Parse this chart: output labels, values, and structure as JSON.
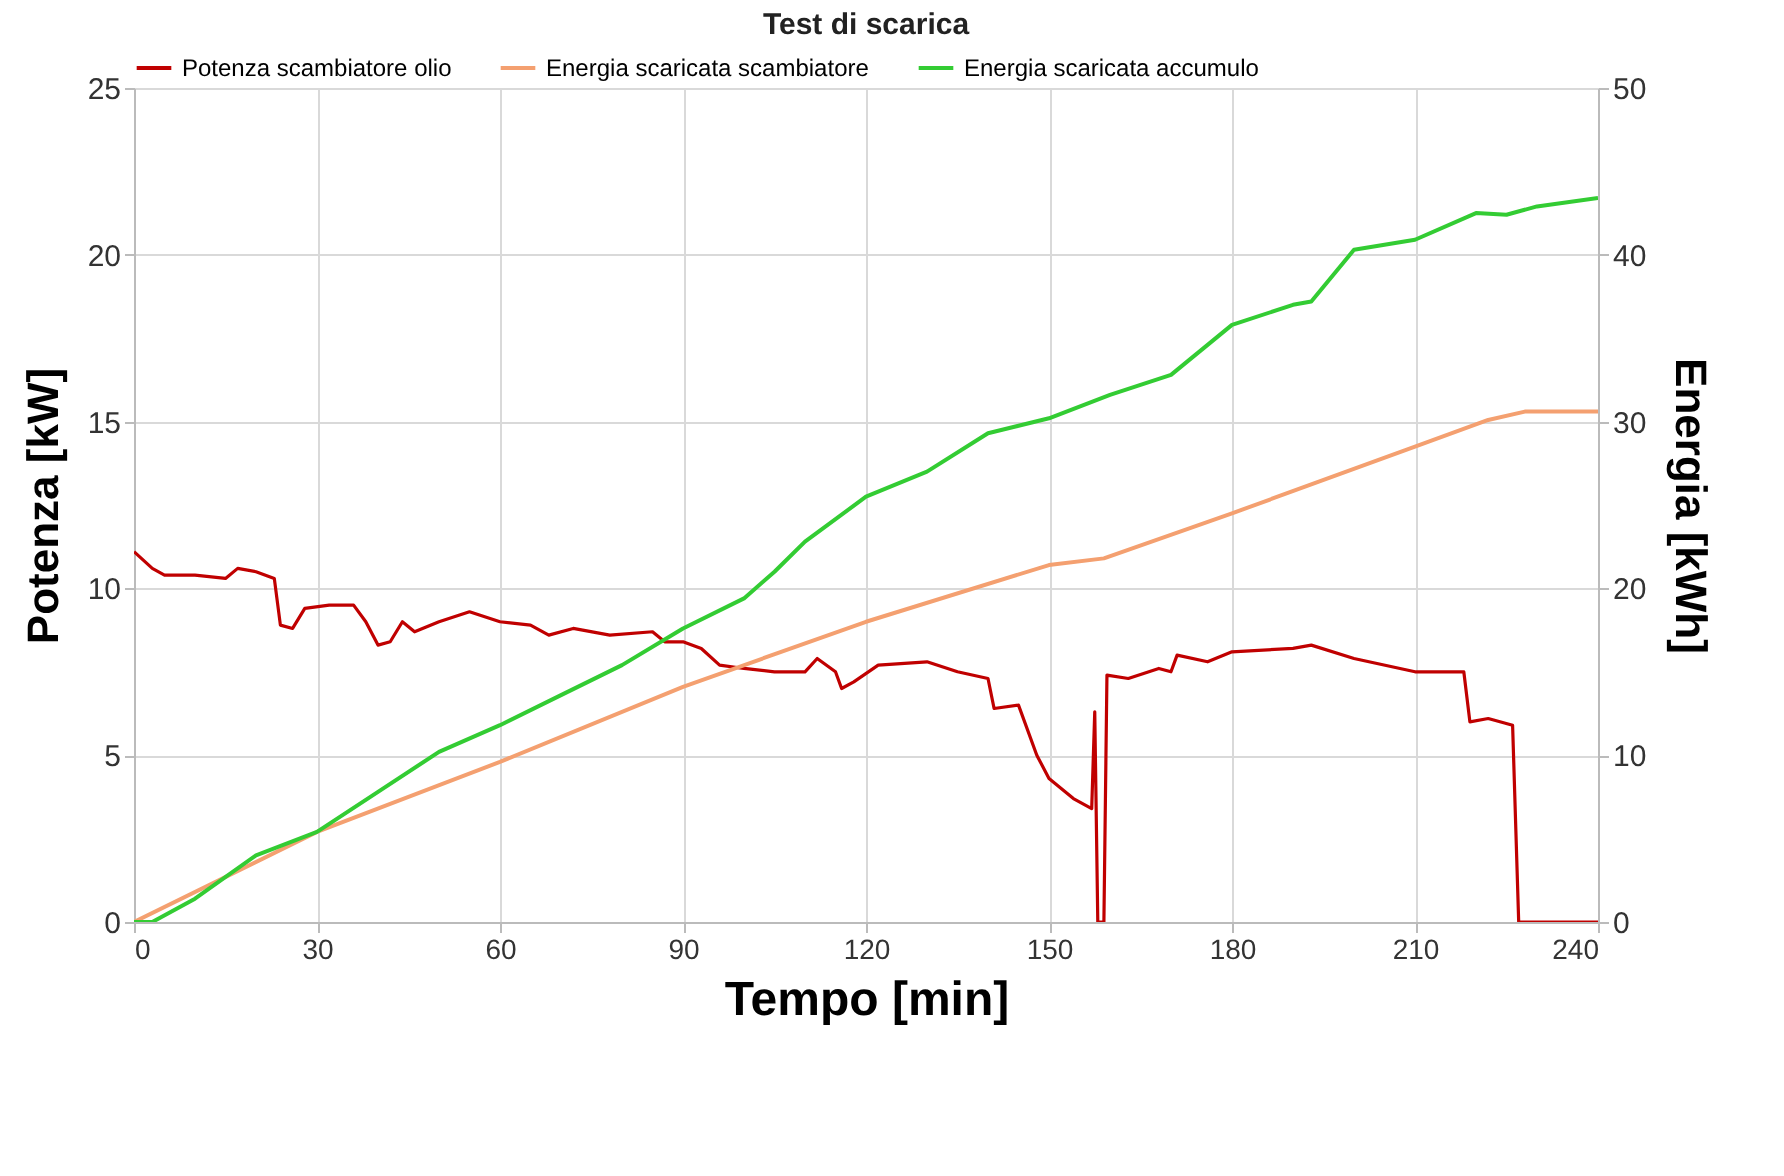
{
  "chart_data": {
    "type": "line",
    "title": "Test di scarica",
    "xlabel": "Tempo [min]",
    "ylabel": "Potenza [kW]",
    "y2label": "Energia [kWh]",
    "xlim": [
      0,
      240
    ],
    "xticks": [
      0,
      30,
      60,
      90,
      120,
      150,
      180,
      210,
      240
    ],
    "ylim": [
      0,
      25
    ],
    "yticks": [
      0,
      5,
      10,
      15,
      20,
      25
    ],
    "y2lim": [
      0,
      50
    ],
    "y2ticks": [
      0,
      10,
      20,
      30,
      40,
      50
    ],
    "grid": true,
    "legend": "top",
    "marker": "none",
    "line_style": "solid",
    "series": [
      {
        "name": "Potenza scambiatore olio",
        "color": "#c00000",
        "axis": "y",
        "x": [
          0,
          3,
          5,
          10,
          15,
          17,
          20,
          23,
          24,
          26,
          28,
          32,
          36,
          38,
          40,
          42,
          44,
          46,
          50,
          55,
          60,
          65,
          68,
          72,
          78,
          85,
          87,
          90,
          93,
          96,
          100,
          105,
          110,
          112,
          115,
          116,
          118,
          122,
          130,
          135,
          140,
          141,
          145,
          148,
          150,
          154,
          157,
          157.5,
          158,
          159,
          159.5,
          163,
          168,
          170,
          171,
          176,
          180,
          190,
          193,
          200,
          210,
          218,
          219,
          222,
          226,
          227,
          240
        ],
        "values": [
          11.1,
          10.6,
          10.4,
          10.4,
          10.3,
          10.6,
          10.5,
          10.3,
          8.9,
          8.8,
          9.4,
          9.5,
          9.5,
          9.0,
          8.3,
          8.4,
          9.0,
          8.7,
          9.0,
          9.3,
          9.0,
          8.9,
          8.6,
          8.8,
          8.6,
          8.7,
          8.4,
          8.4,
          8.2,
          7.7,
          7.6,
          7.5,
          7.5,
          7.9,
          7.5,
          7.0,
          7.2,
          7.7,
          7.8,
          7.5,
          7.3,
          6.4,
          6.5,
          5.0,
          4.3,
          3.7,
          3.4,
          6.3,
          0,
          0,
          7.4,
          7.3,
          7.6,
          7.5,
          8.0,
          7.8,
          8.1,
          8.2,
          8.3,
          7.9,
          7.5,
          7.5,
          6.0,
          6.1,
          5.9,
          0,
          0
        ]
      },
      {
        "name": "Energia scaricata scambiatore",
        "color": "#f4a070",
        "axis": "y2",
        "x": [
          0,
          30,
          60,
          90,
          120,
          150,
          159,
          180,
          210,
          222,
          228,
          240
        ],
        "values": [
          0,
          5.4,
          9.6,
          14.1,
          18,
          21.4,
          21.8,
          24.5,
          28.5,
          30.1,
          30.6,
          30.6
        ]
      },
      {
        "name": "Energia scaricata accumulo",
        "color": "#33cc33",
        "axis": "y2",
        "x": [
          0,
          3,
          10,
          20,
          30,
          40,
          50,
          60,
          70,
          80,
          90,
          100,
          105,
          110,
          120,
          130,
          140,
          150,
          160,
          170,
          180,
          190,
          193,
          200,
          210,
          220,
          225,
          230,
          240
        ],
        "values": [
          0,
          0,
          1.4,
          4,
          5.4,
          7.8,
          10.2,
          11.8,
          13.6,
          15.4,
          17.6,
          19.4,
          21,
          22.8,
          25.5,
          27,
          29.3,
          30.2,
          31.6,
          32.8,
          35.8,
          37,
          37.2,
          40.3,
          40.9,
          42.5,
          42.4,
          42.9,
          43.4
        ]
      }
    ]
  }
}
